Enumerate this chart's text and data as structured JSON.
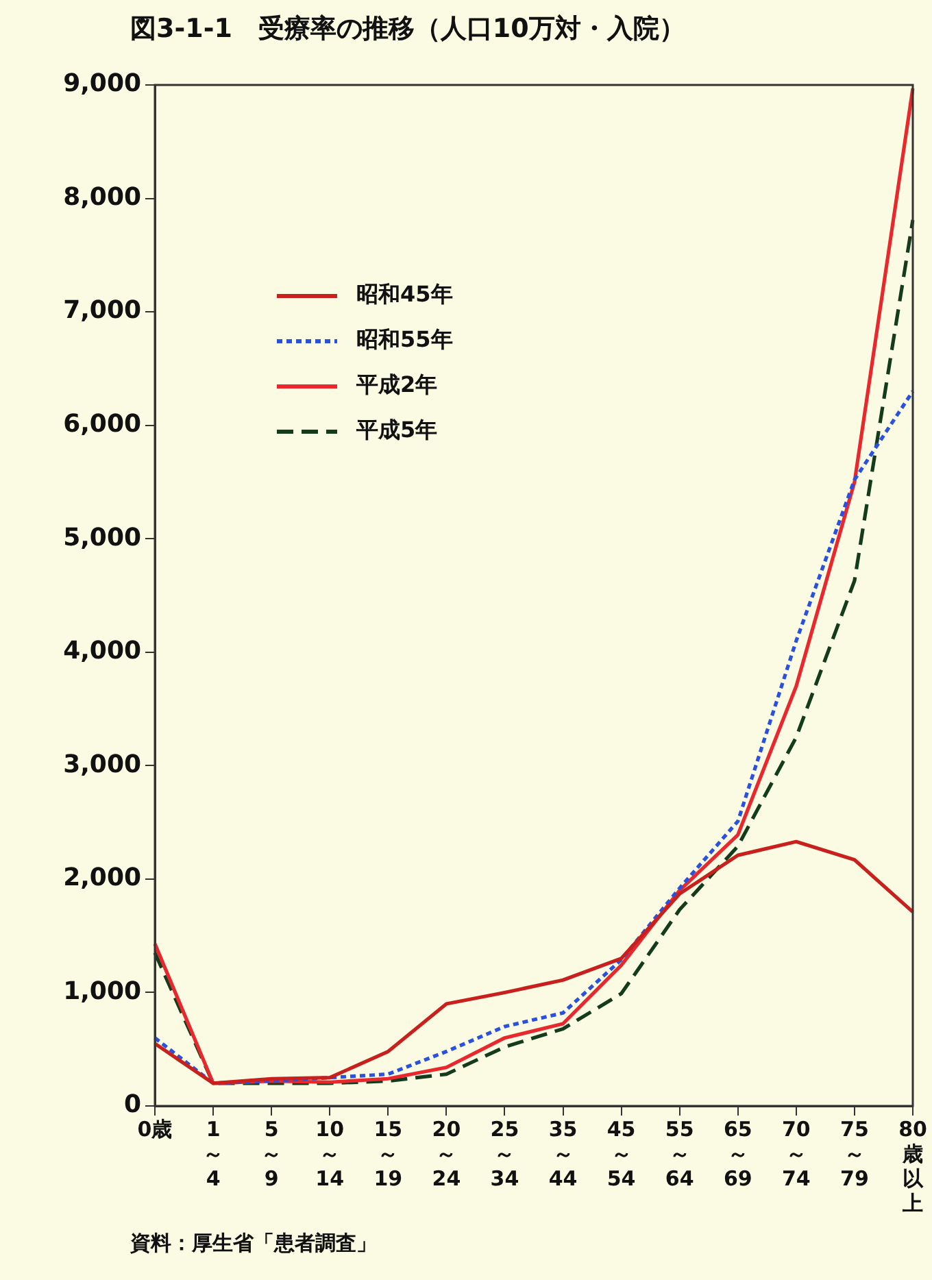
{
  "chart_data": {
    "type": "line",
    "title": "図3-1-1　受療率の推移（人口10万対・入院）",
    "categories": [
      "0歳",
      "1～4",
      "5～9",
      "10～14",
      "15～19",
      "20～24",
      "25～34",
      "35～44",
      "45～54",
      "55～64",
      "65～69",
      "70～74",
      "75～79",
      "80歳以上"
    ],
    "series": [
      {
        "name": "昭和45年",
        "color": "#c8201c",
        "line_style": "solid",
        "values": [
          550,
          200,
          240,
          250,
          480,
          900,
          1000,
          1110,
          1300,
          1870,
          2210,
          2330,
          2170,
          1710
        ]
      },
      {
        "name": "昭和55年",
        "color": "#2a50e0",
        "line_style": "dotted",
        "values": [
          600,
          200,
          220,
          250,
          280,
          480,
          700,
          820,
          1290,
          1920,
          2510,
          4100,
          5520,
          6300
        ]
      },
      {
        "name": "平成2年",
        "color": "#e8282c",
        "line_style": "solid",
        "values": [
          1430,
          200,
          220,
          210,
          240,
          340,
          600,
          725,
          1240,
          1900,
          2390,
          3700,
          5500,
          8970
        ]
      },
      {
        "name": "平成5年",
        "color": "#143c1c",
        "line_style": "dashed",
        "values": [
          1350,
          200,
          200,
          200,
          220,
          280,
          520,
          680,
          990,
          1730,
          2290,
          3250,
          4630,
          7810
        ]
      }
    ],
    "ylim": [
      0,
      9000
    ],
    "yticks": [
      0,
      {
        "value": 1000,
        "label": "1,000"
      },
      {
        "value": 2000,
        "label": "2,000"
      },
      {
        "value": 3000,
        "label": "3,000"
      },
      {
        "value": 4000,
        "label": "4,000"
      },
      {
        "value": 5000,
        "label": "5,000"
      },
      {
        "value": 6000,
        "label": "6,000"
      },
      {
        "value": 7000,
        "label": "7,000"
      },
      {
        "value": 8000,
        "label": "8,000"
      },
      {
        "value": 9000,
        "label": "9,000"
      }
    ],
    "grid": false,
    "legend": "top left",
    "marker": "none",
    "annotations": [
      "資料：厚生省「患者調査」"
    ]
  }
}
